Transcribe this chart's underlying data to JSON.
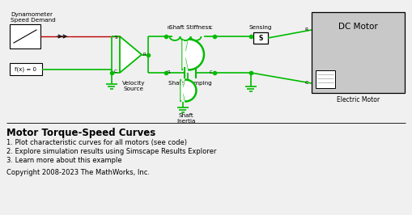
{
  "bg_color": "#f0f0f0",
  "green": "#00bb00",
  "red": "#bb0000",
  "black": "#000000",
  "gray": "#c8c8c8",
  "white": "#ffffff",
  "title": "Motor Torque-Speed Curves",
  "items": [
    "1. Plot characteristic curves for all motors (see code)",
    "2. Explore simulation results using Simscape Results Explorer",
    "3. Learn more about this example"
  ],
  "copyright": "Copyright 2008-2023 The MathWorks, Inc.",
  "dyn_label": "Dynamometer\nSpeed Demand",
  "vs_label": "Velocity\nSource",
  "ss_label": "Shaft Stiffness",
  "sd_label": "Shaft Damping",
  "si_label": "Shaft\nInertia",
  "sensing_label": "Sensing",
  "dc_label": "DC Motor",
  "em_label": "Electric Motor",
  "fx_label": "f(x) = 0"
}
